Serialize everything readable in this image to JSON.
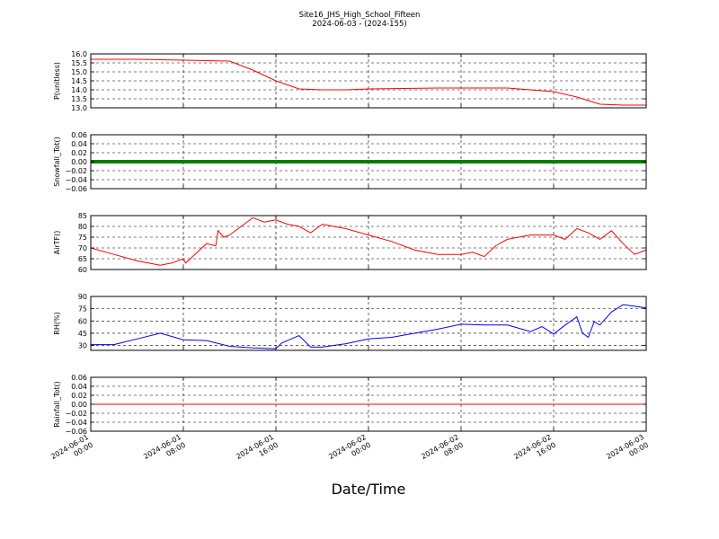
{
  "figure": {
    "title": "Site16_JHS_High_School_Fifteen",
    "subtitle": "2024-06-03 - (2024-155)",
    "xlabel": "Date/Time"
  },
  "chart_data": [
    {
      "type": "line",
      "ylabel": "P(unitless)",
      "ylim": [
        13.0,
        16.0
      ],
      "yticks": [
        "13.0",
        "13.5",
        "14.0",
        "14.5",
        "15.0",
        "15.5",
        "16.0"
      ],
      "grid": true,
      "series": [
        {
          "color": "#ff0000",
          "x_hours": [
            0,
            4,
            8,
            12,
            14,
            16,
            18,
            20,
            22,
            24,
            30,
            36,
            40,
            42,
            44,
            46,
            48
          ],
          "values": [
            15.7,
            15.7,
            15.65,
            15.6,
            15.1,
            14.5,
            14.05,
            14.0,
            14.0,
            14.05,
            14.1,
            14.1,
            13.9,
            13.6,
            13.2,
            13.15,
            13.15
          ]
        }
      ]
    },
    {
      "type": "line",
      "ylabel": "Snowfall_Tot()",
      "ylim": [
        -0.06,
        0.06
      ],
      "yticks": [
        "−0.06",
        "−0.04",
        "−0.02",
        "0.00",
        "0.02",
        "0.04",
        "0.06"
      ],
      "grid": true,
      "series": [
        {
          "color": "#008000",
          "x_hours": [
            0,
            48
          ],
          "values": [
            0,
            0
          ]
        }
      ]
    },
    {
      "type": "line",
      "ylabel": "AirTF()",
      "ylim": [
        60,
        85
      ],
      "yticks": [
        "60",
        "65",
        "70",
        "75",
        "80",
        "85"
      ],
      "grid": true,
      "series": [
        {
          "color": "#ff0000",
          "x_hours": [
            0,
            2,
            4,
            6,
            7,
            8,
            8.2,
            9,
            10,
            10.8,
            11,
            11.5,
            12,
            13,
            14,
            15,
            16,
            17,
            18,
            19,
            20,
            22,
            24,
            26,
            28,
            30,
            32,
            33,
            34,
            35,
            36,
            38,
            40,
            41,
            42,
            43,
            44,
            45,
            46,
            47,
            48
          ],
          "values": [
            70,
            67,
            64,
            62,
            63,
            65,
            63,
            67,
            72,
            71,
            78,
            75,
            76,
            80,
            84,
            82,
            83,
            81,
            80,
            77,
            81,
            79,
            76,
            73,
            69,
            67,
            67,
            68,
            66,
            71,
            74,
            76,
            76,
            74,
            79,
            77,
            74,
            78,
            72,
            67,
            69
          ]
        }
      ]
    },
    {
      "type": "line",
      "ylabel": "RH(%)",
      "ylim": [
        24,
        90
      ],
      "yticks": [
        "30",
        "45",
        "60",
        "75",
        "90"
      ],
      "grid": true,
      "series": [
        {
          "color": "#0000ff",
          "x_hours": [
            0,
            2,
            4,
            6,
            8,
            10,
            12,
            14,
            16,
            16.5,
            17,
            18,
            19,
            20,
            22,
            24,
            26,
            28,
            30,
            32,
            34,
            36,
            38,
            39,
            40,
            41,
            42,
            42.5,
            43,
            43.5,
            44,
            45,
            46,
            47,
            48
          ],
          "values": [
            31,
            31,
            38,
            45,
            37,
            36,
            29,
            27,
            26,
            33,
            36,
            42,
            28,
            28,
            32,
            38,
            40,
            45,
            50,
            56,
            55,
            55,
            47,
            53,
            44,
            55,
            65,
            45,
            40,
            59,
            55,
            71,
            80,
            78,
            76
          ]
        }
      ]
    },
    {
      "type": "line",
      "ylabel": "Rainfall_Tot()",
      "ylim": [
        -0.06,
        0.06
      ],
      "yticks": [
        "−0.06",
        "−0.04",
        "−0.02",
        "0.00",
        "0.02",
        "0.04",
        "0.06"
      ],
      "grid": true,
      "series": [
        {
          "color": "#ff0000",
          "x_hours": [
            0,
            48
          ],
          "values": [
            0,
            0
          ]
        }
      ]
    }
  ],
  "x_axis": {
    "range_hours": [
      0,
      48
    ],
    "ticks": [
      {
        "hours": 0,
        "line1": "2024-06-01",
        "line2": "00:00"
      },
      {
        "hours": 8,
        "line1": "2024-06-01",
        "line2": "08:00"
      },
      {
        "hours": 16,
        "line1": "2024-06-01",
        "line2": "16:00"
      },
      {
        "hours": 24,
        "line1": "2024-06-02",
        "line2": "00:00"
      },
      {
        "hours": 32,
        "line1": "2024-06-02",
        "line2": "08:00"
      },
      {
        "hours": 40,
        "line1": "2024-06-02",
        "line2": "16:00"
      },
      {
        "hours": 48,
        "line1": "2024-06-03",
        "line2": "00:00"
      }
    ]
  }
}
